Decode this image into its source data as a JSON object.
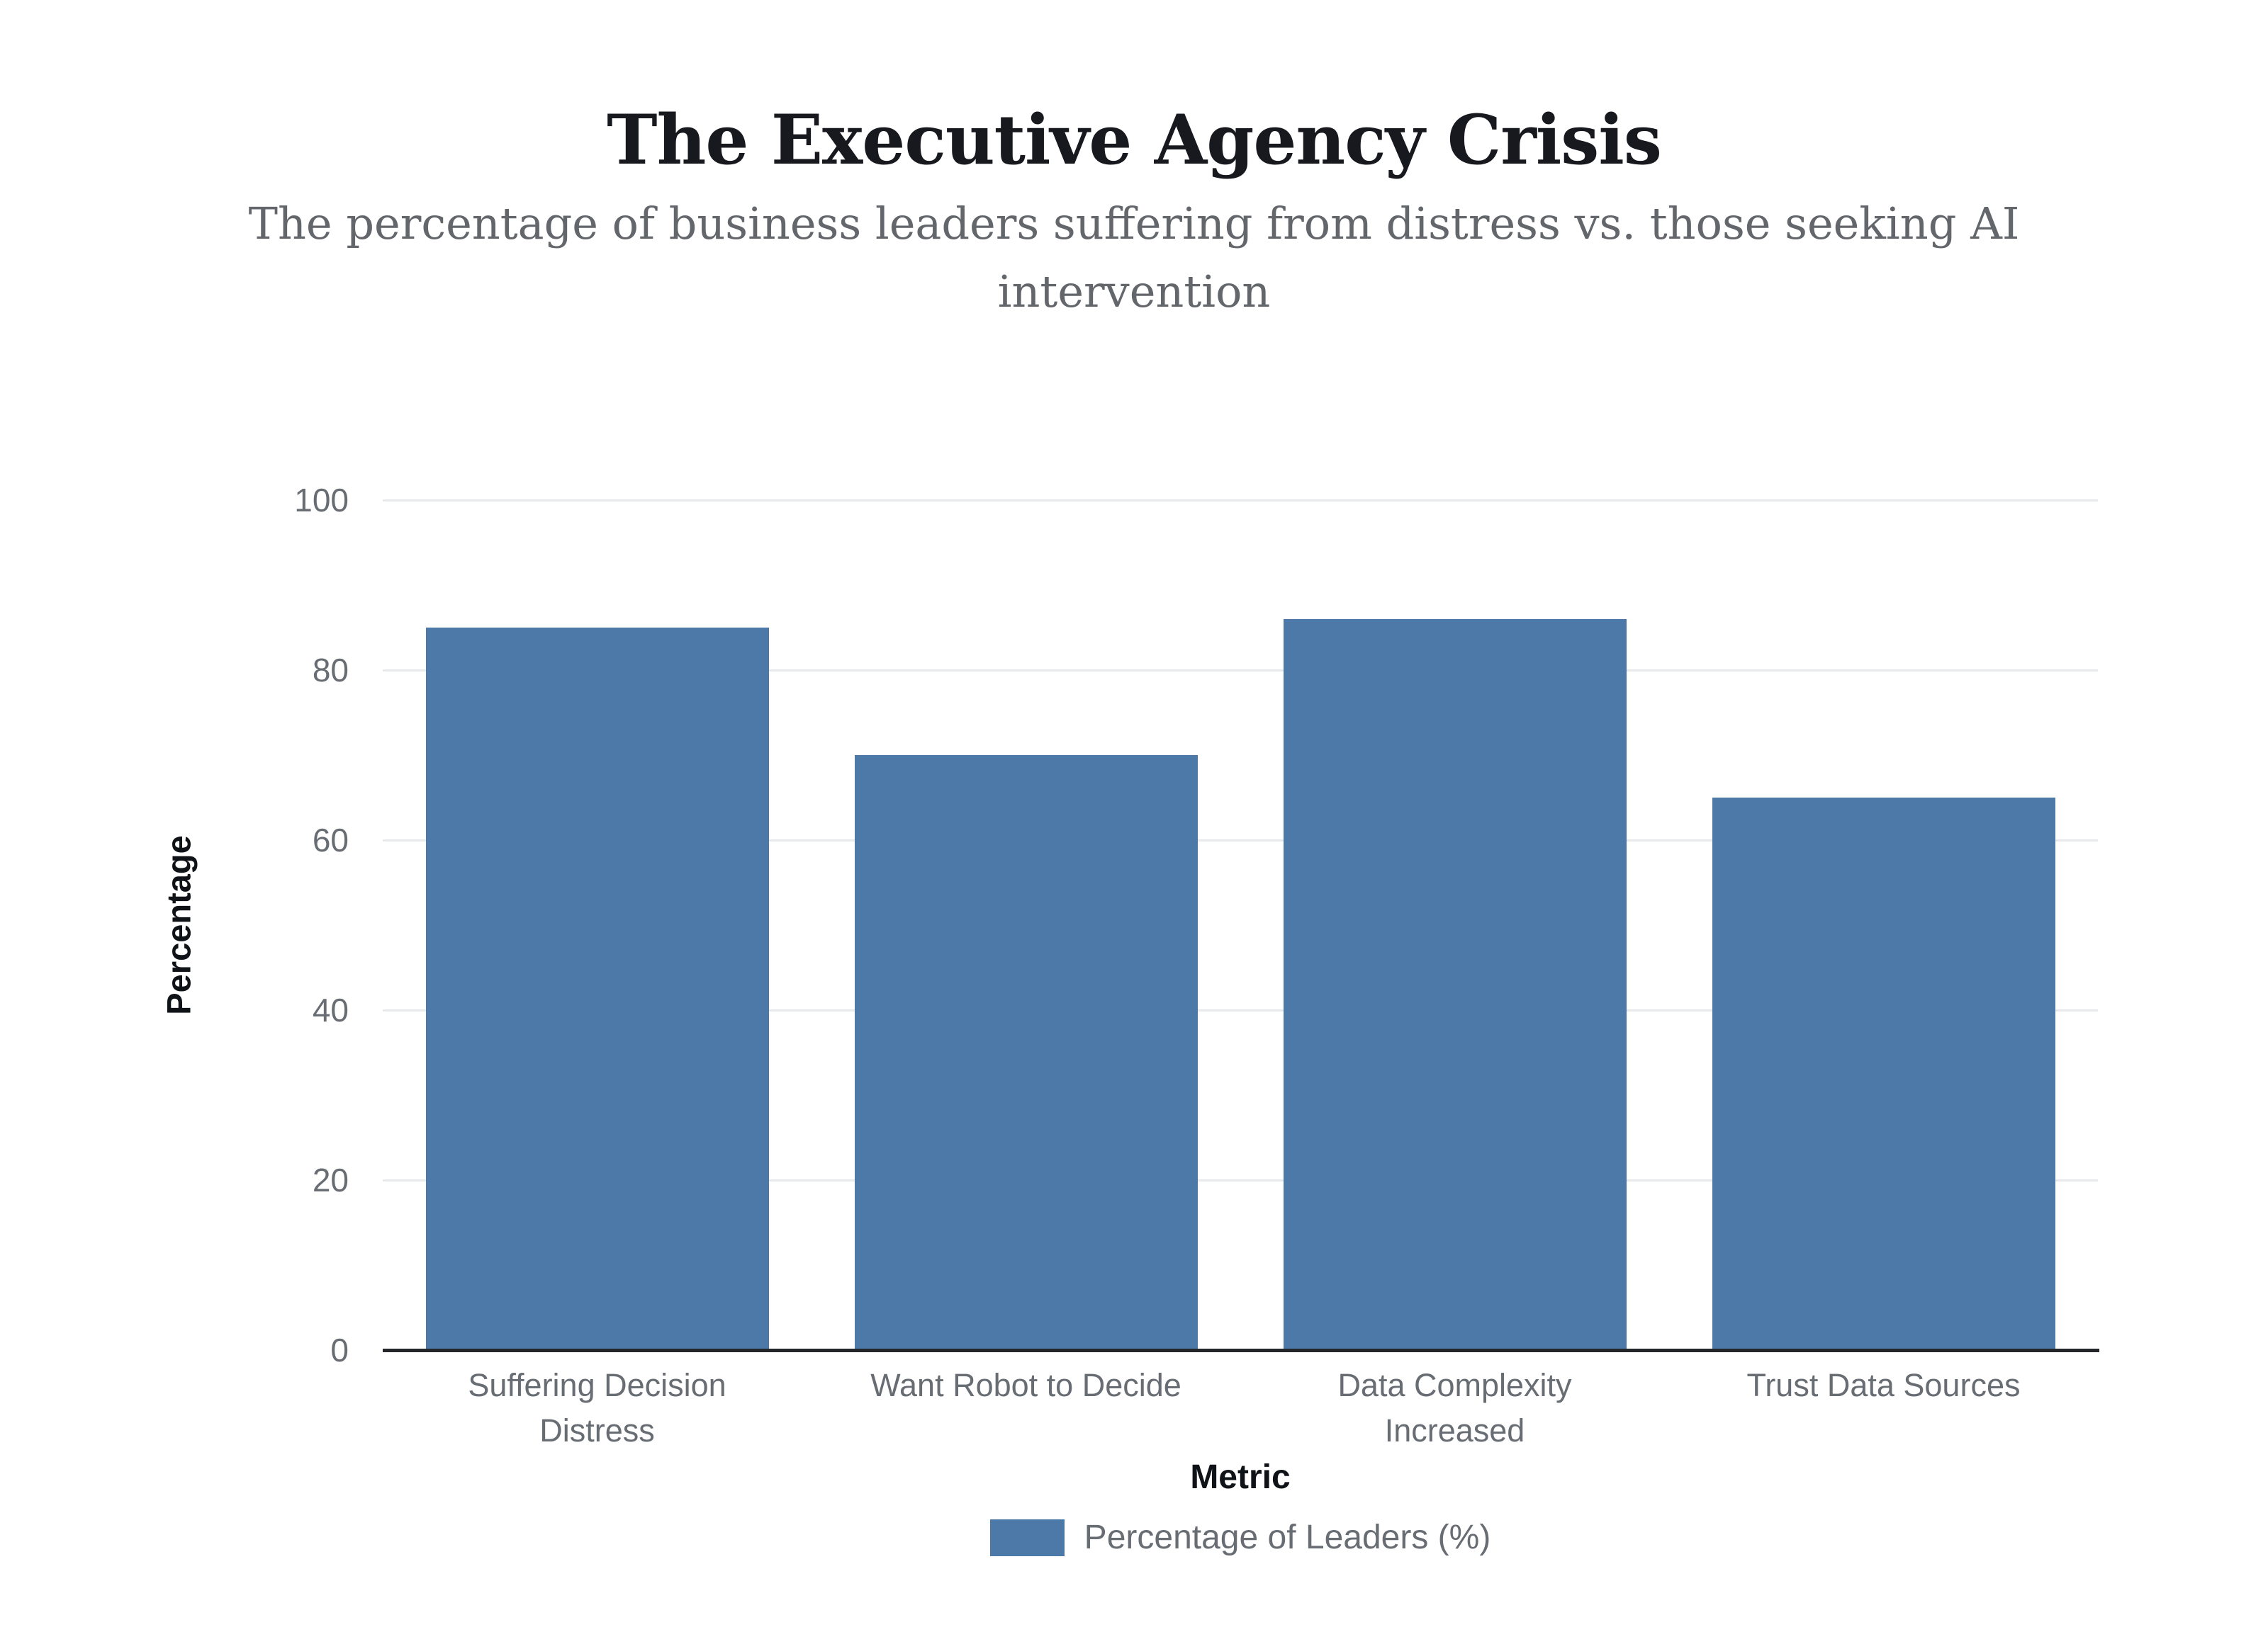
{
  "chart_data": {
    "type": "bar",
    "title": "The Executive Agency Crisis",
    "subtitle": "The percentage of business leaders suffering from distress vs. those seeking AI intervention",
    "categories": [
      "Suffering Decision Distress",
      "Want Robot to Decide",
      "Data Complexity Increased",
      "Trust Data Sources"
    ],
    "series": [
      {
        "name": "Percentage of Leaders (%)",
        "values": [
          85,
          70,
          86,
          65
        ]
      }
    ],
    "xlabel": "Metric",
    "ylabel": "Percentage",
    "ylim": [
      0,
      100
    ],
    "yticks": [
      0,
      20,
      40,
      60,
      80,
      100
    ],
    "grid": true,
    "legend_position": "bottom",
    "legend": [
      {
        "label": "Percentage of Leaders (%)",
        "swatch_color": "#4d79a9"
      }
    ],
    "colors": {
      "bar": "#4d79a9",
      "title": "#17191f",
      "subtitle": "#63666b",
      "tick_label": "#686d73",
      "axis_label": "#0f1216",
      "gridline": "#e7e9ec",
      "axis_line": "#24262a",
      "background": "#ffffff"
    }
  }
}
